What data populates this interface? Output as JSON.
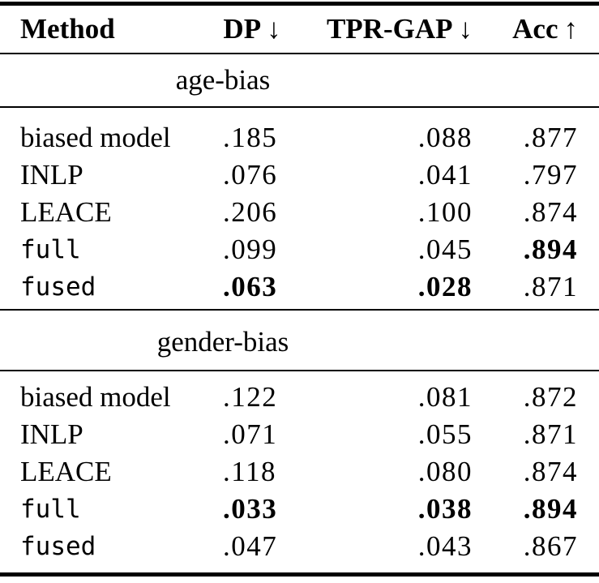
{
  "colors": {
    "text": "#000000",
    "background": "#ffffff",
    "rule": "#000000"
  },
  "table": {
    "header": {
      "method": "Method",
      "columns": [
        {
          "label": "DP",
          "arrow": "↓"
        },
        {
          "label": "TPR-GAP",
          "arrow": "↓"
        },
        {
          "label": "Acc",
          "arrow": "↑"
        }
      ]
    },
    "sections": [
      {
        "title": "age-bias",
        "rows": [
          {
            "method": "biased model",
            "mono": false,
            "values": [
              ".185",
              ".088",
              ".877"
            ],
            "bold": [
              false,
              false,
              false
            ]
          },
          {
            "method": "INLP",
            "mono": false,
            "values": [
              ".076",
              ".041",
              ".797"
            ],
            "bold": [
              false,
              false,
              false
            ]
          },
          {
            "method": "LEACE",
            "mono": false,
            "values": [
              ".206",
              ".100",
              ".874"
            ],
            "bold": [
              false,
              false,
              false
            ]
          },
          {
            "method": "full",
            "mono": true,
            "values": [
              ".099",
              ".045",
              ".894"
            ],
            "bold": [
              false,
              false,
              true
            ]
          },
          {
            "method": "fused",
            "mono": true,
            "values": [
              ".063",
              ".028",
              ".871"
            ],
            "bold": [
              true,
              true,
              false
            ]
          }
        ]
      },
      {
        "title": "gender-bias",
        "rows": [
          {
            "method": "biased model",
            "mono": false,
            "values": [
              ".122",
              ".081",
              ".872"
            ],
            "bold": [
              false,
              false,
              false
            ]
          },
          {
            "method": "INLP",
            "mono": false,
            "values": [
              ".071",
              ".055",
              ".871"
            ],
            "bold": [
              false,
              false,
              false
            ]
          },
          {
            "method": "LEACE",
            "mono": false,
            "values": [
              ".118",
              ".080",
              ".874"
            ],
            "bold": [
              false,
              false,
              false
            ]
          },
          {
            "method": "full",
            "mono": true,
            "values": [
              ".033",
              ".038",
              ".894"
            ],
            "bold": [
              true,
              true,
              true
            ]
          },
          {
            "method": "fused",
            "mono": true,
            "values": [
              ".047",
              ".043",
              ".867"
            ],
            "bold": [
              false,
              false,
              false
            ]
          }
        ]
      }
    ]
  }
}
